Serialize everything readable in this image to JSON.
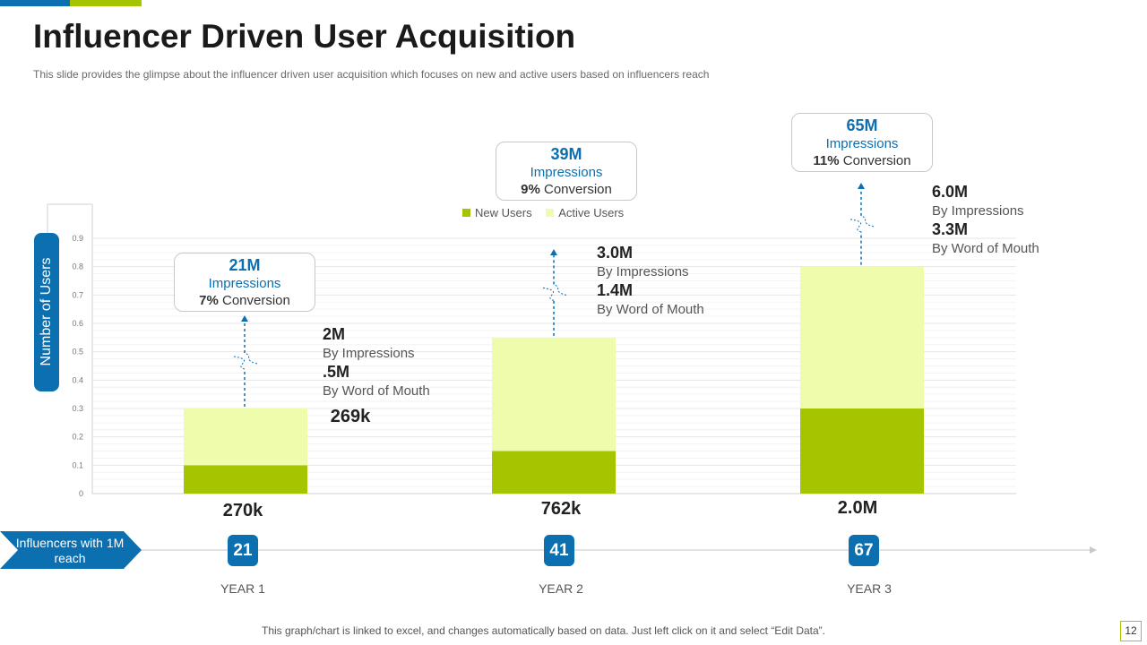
{
  "header": {
    "title": "Influencer Driven User Acquisition",
    "subtitle": "This slide provides  the glimpse about the influencer driven  user acquisition which focuses on new and active users based on influencers reach"
  },
  "colors": {
    "accent_blue": "#0b6fb0",
    "accent_green": "#a6c400",
    "new_users": "#a6c400",
    "active_users": "#eefcac"
  },
  "chart_data": {
    "type": "bar",
    "stacked": true,
    "categories": [
      "",
      "",
      ""
    ],
    "series": [
      {
        "name": "New Users",
        "values": [
          0.1,
          0.15,
          0.3
        ]
      },
      {
        "name": "Active Users",
        "values": [
          0.2,
          0.4,
          0.5
        ]
      }
    ],
    "yticks": [
      "0",
      "0.1",
      "0.2",
      "0.3",
      "0.4",
      "0.5",
      "0.6",
      "0.7",
      "0.8",
      "0.9"
    ],
    "ylim": [
      0,
      0.9
    ],
    "ylabel": "Number of Users",
    "grid": true,
    "legend": "top-center"
  },
  "legend": {
    "new_users": "New Users",
    "active_users": "Active Users"
  },
  "callouts": [
    {
      "value": "21M",
      "label": "Impressions",
      "pct": "7%",
      "conv": " Conversion"
    },
    {
      "value": "39M",
      "label": "Impressions",
      "pct": "9%",
      "conv": " Conversion"
    },
    {
      "value": "65M",
      "label": "Impressions",
      "pct": "11%",
      "conv": " Conversion"
    }
  ],
  "annotations": [
    {
      "impr_value": "2M",
      "impr_label": "By Impressions",
      "wom_value": ".5M",
      "wom_label": "By Word of Mouth"
    },
    {
      "impr_value": "3.0M",
      "impr_label": "By Impressions",
      "wom_value": "1.4M",
      "wom_label": "By Word of Mouth"
    },
    {
      "impr_value": "6.0M",
      "impr_label": "By Impressions",
      "wom_value": "3.3M",
      "wom_label": "By Word of Mouth"
    }
  ],
  "extra_value": "269k",
  "bottom_values": [
    "270k",
    "762k",
    "2.0M"
  ],
  "influencers": {
    "label": "Influencers with 1M reach",
    "counts": [
      "21",
      "41",
      "67"
    ]
  },
  "years": [
    "YEAR 1",
    "YEAR 2",
    "YEAR 3"
  ],
  "footer": "This graph/chart is linked to excel, and changes automatically based on data. Just left click on it and select “Edit Data”.",
  "page_number": "12"
}
